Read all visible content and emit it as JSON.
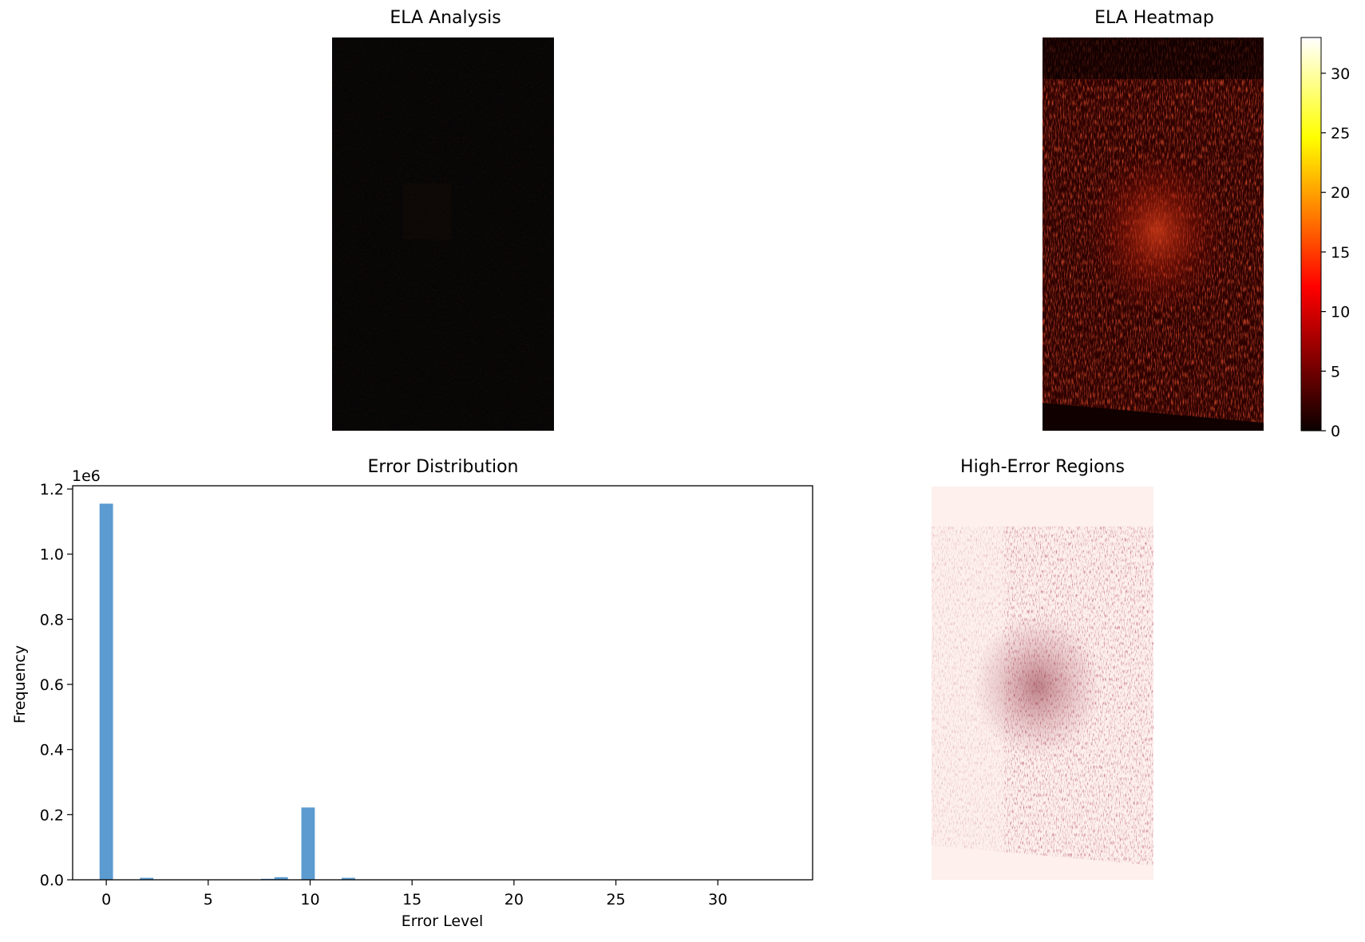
{
  "panels": {
    "ela_analysis": {
      "title": "ELA Analysis"
    },
    "ela_heatmap": {
      "title": "ELA Heatmap"
    },
    "error_distribution": {
      "title": "Error Distribution"
    },
    "high_error_regions": {
      "title": "High-Error Regions"
    }
  },
  "colorbar": {
    "colormap": "hot",
    "range": [
      0,
      33
    ],
    "ticks": [
      "0",
      "5",
      "10",
      "15",
      "20",
      "25",
      "30"
    ]
  },
  "chart_data": {
    "type": "bar",
    "title": "Error Distribution",
    "xlabel": "Error Level",
    "ylabel": "Frequency",
    "y_offset_label": "1e6",
    "xlim": [
      -1.65,
      34.65
    ],
    "ylim": [
      0,
      1.21
    ],
    "x_ticks": [
      0,
      5,
      10,
      15,
      20,
      25,
      30
    ],
    "y_ticks": [
      "0.0",
      "0.2",
      "0.4",
      "0.6",
      "0.8",
      "1.0",
      "1.2"
    ],
    "bin_width": 0.66,
    "color": "#5b9bd0",
    "bins": [
      {
        "x": 0.0,
        "value": 1.155
      },
      {
        "x": 1.98,
        "value": 0.006
      },
      {
        "x": 7.92,
        "value": 0.003
      },
      {
        "x": 8.58,
        "value": 0.008
      },
      {
        "x": 9.9,
        "value": 0.222
      },
      {
        "x": 11.88,
        "value": 0.006
      }
    ]
  }
}
